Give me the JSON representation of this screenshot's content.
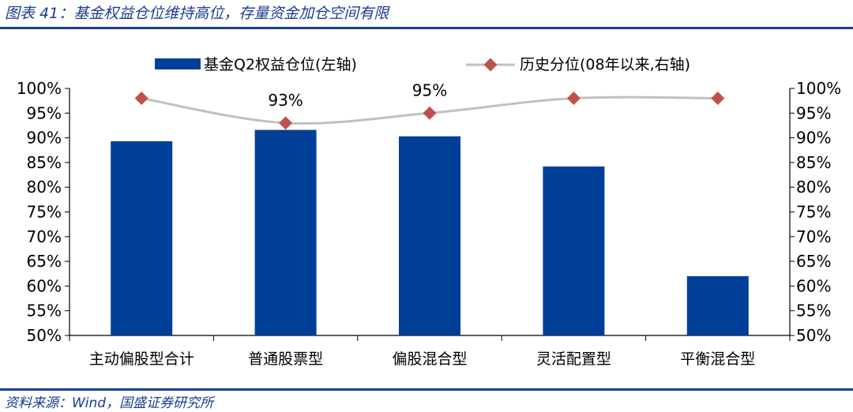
{
  "figure": {
    "title": "图表 41：基金权益仓位维持高位，存量资金加仓空间有限",
    "source": "资料来源：Wind，国盛证券研究所"
  },
  "colors": {
    "bar": "#003f98",
    "line": "#c0c0c0",
    "marker": "#c0504d",
    "accent": "#1b3d8f"
  },
  "chart_data": {
    "type": "bar",
    "categories": [
      "主动偏股型合计",
      "普通股票型",
      "偏股混合型",
      "灵活配置型",
      "平衡混合型"
    ],
    "series": [
      {
        "name": "基金Q2权益仓位(左轴)",
        "type": "bar",
        "axis": "left",
        "values": [
          89.3,
          91.6,
          90.3,
          84.2,
          62.0
        ]
      },
      {
        "name": "历史分位(08年以来,右轴)",
        "type": "line",
        "axis": "right",
        "values": [
          98,
          93,
          95,
          98,
          98
        ]
      }
    ],
    "data_labels": [
      {
        "series": 1,
        "index": 1,
        "text": "93%"
      },
      {
        "series": 1,
        "index": 2,
        "text": "95%"
      }
    ],
    "y_left": {
      "ticks": [
        "50%",
        "55%",
        "60%",
        "65%",
        "70%",
        "75%",
        "80%",
        "85%",
        "90%",
        "95%",
        "100%"
      ],
      "lim": [
        50,
        100
      ]
    },
    "y_right": {
      "ticks": [
        "50%",
        "55%",
        "60%",
        "65%",
        "70%",
        "75%",
        "80%",
        "85%",
        "90%",
        "95%",
        "100%"
      ],
      "lim": [
        50,
        100
      ]
    },
    "grid": false,
    "legend_position": "top"
  }
}
